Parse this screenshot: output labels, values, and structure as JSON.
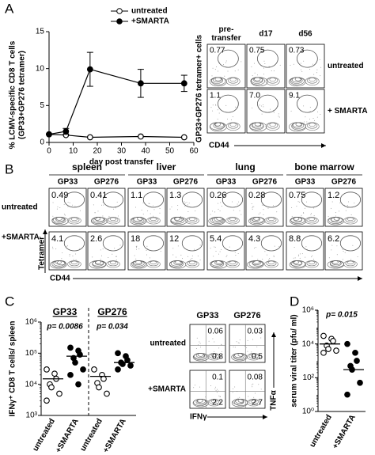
{
  "panel_labels": {
    "a": "A",
    "b": "B",
    "c": "C",
    "d": "D"
  },
  "chart_data": [
    {
      "type": "line",
      "y_label": [
        "% LCMV-specific CD8 T cells",
        "(GP33+GP276 tetramer)"
      ],
      "x_label": "day post transfer",
      "x": [
        0,
        7,
        17,
        38,
        56
      ],
      "series": [
        {
          "name": "untreated",
          "color": "#000000",
          "marker": "open",
          "values": [
            1.1,
            1.0,
            0.7,
            0.8,
            0.7
          ]
        },
        {
          "name": "+SMARTA",
          "color": "#000000",
          "marker": "filled",
          "values": [
            1.1,
            1.5,
            9.9,
            8.0,
            8.0
          ],
          "errors": [
            0,
            0.4,
            2.3,
            1.9,
            1.1
          ]
        }
      ],
      "xlim": [
        0,
        60
      ],
      "xticks": [
        0,
        10,
        20,
        30,
        40,
        50,
        60
      ],
      "ylim": [
        0,
        15
      ],
      "yticks": [
        0,
        5,
        10,
        15
      ],
      "legend": "top-right"
    },
    {
      "type": "dot",
      "y_label": "IFNγ⁺ CD8 T cells/ spleen",
      "groups": [
        "GP33",
        "GP276"
      ],
      "p_labels": [
        "p= 0.0086",
        "p= 0.034"
      ],
      "categories": [
        "untreated",
        "+SMARTA",
        "untreated",
        "+SMARTA"
      ],
      "markers": [
        "open",
        "filled",
        "open",
        "filled"
      ],
      "points": [
        [
          30000,
          22000,
          15000,
          10000,
          8000,
          5000,
          3000
        ],
        [
          150000,
          120000,
          90000,
          70000,
          50000,
          30000,
          20000,
          10000
        ],
        [
          30000,
          20000,
          15000,
          11000,
          8000,
          5000
        ],
        [
          100000,
          80000,
          60000,
          50000,
          45000,
          40000,
          30000
        ]
      ],
      "medians": [
        15000,
        80000,
        18000,
        50000
      ],
      "log": true,
      "ylim": [
        1000,
        1000000
      ],
      "yticks": [
        {
          "value": 1000,
          "label": "10³"
        },
        {
          "value": 10000,
          "label": "10⁴"
        },
        {
          "value": 100000,
          "label": "10⁵"
        },
        {
          "value": 1000000,
          "label": "10⁶"
        }
      ]
    },
    {
      "type": "dot",
      "y_label": "serum viral titer (pfu/ ml)",
      "groups": [],
      "p_labels": [
        "p= 0.015"
      ],
      "categories": [
        "untreated",
        "+SMARTA"
      ],
      "markers": [
        "open",
        "filled"
      ],
      "points": [
        [
          30000,
          20000,
          15000,
          8000,
          5000,
          4000,
          3000
        ],
        [
          10000,
          3000,
          1000,
          500,
          300,
          50,
          10
        ]
      ],
      "medians": [
        10000,
        300
      ],
      "log": true,
      "ylim": [
        1,
        1000000
      ],
      "yticks": [
        {
          "value": 1,
          "label": "10⁰"
        },
        {
          "value": 100,
          "label": "10²"
        },
        {
          "value": 10000,
          "label": "10⁴"
        },
        {
          "value": 1000000,
          "label": "10⁶"
        }
      ]
    }
  ],
  "flow_a": {
    "columns": [
      "pre-transfer",
      "d17",
      "d56"
    ],
    "rows": [
      "untreated",
      "+ SMARTA"
    ],
    "values": [
      [
        "0.77",
        "0.75",
        "0.73"
      ],
      [
        "1.1",
        "7.0",
        "9.1"
      ]
    ],
    "y_label": "GP33+GP276 tetramer+ cells",
    "x_label": "CD44"
  },
  "flow_b": {
    "tissues": [
      "spleen",
      "liver",
      "lung",
      "bone marrow"
    ],
    "tetramers": [
      [
        "GP33",
        "GP276"
      ],
      [
        "GP33",
        "GP276"
      ],
      [
        "GP33",
        "GP276"
      ],
      [
        "GP33",
        "GP276"
      ]
    ],
    "rows": [
      "untreated",
      "+SMARTA"
    ],
    "values": [
      [
        "0.49",
        "0.41",
        "1.1",
        "1.3",
        "0.26",
        "0.28",
        "0.75",
        "1.2"
      ],
      [
        "4.1",
        "2.6",
        "18",
        "12",
        "5.4",
        "4.3",
        "8.8",
        "6.2"
      ]
    ],
    "y_label": "Tetramer",
    "x_label": "CD44"
  },
  "flow_c": {
    "columns": [
      "GP33",
      "GP276"
    ],
    "rows": [
      "untreated",
      "+SMARTA"
    ],
    "upper_right": [
      [
        "0.06",
        "0.03"
      ],
      [
        "0.1",
        "0.08"
      ]
    ],
    "lower_right": [
      [
        "0.8",
        "0.5"
      ],
      [
        "2.2",
        "2.7"
      ]
    ],
    "y_label": "TNFα",
    "x_label": "IFNγ"
  }
}
